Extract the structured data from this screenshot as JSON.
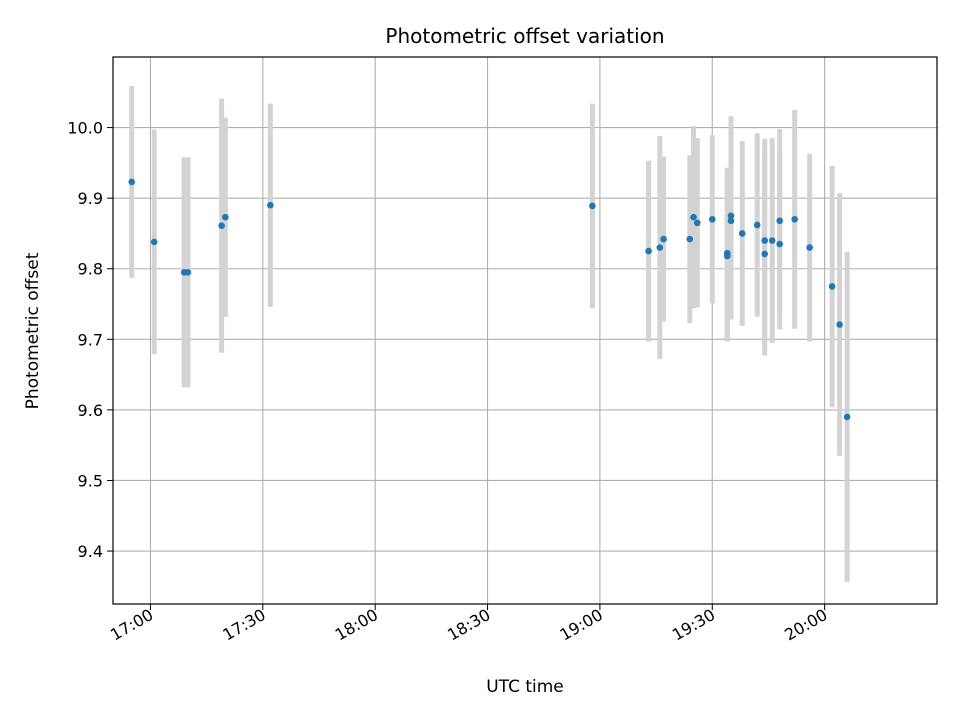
{
  "chart_data": {
    "type": "scatter",
    "title": "Photometric offset variation",
    "xlabel": "UTC time",
    "ylabel": "Photometric offset",
    "xlim": [
      "16:50",
      "20:30"
    ],
    "ylim": [
      9.325,
      10.1
    ],
    "x_ticks": [
      "17:00",
      "17:30",
      "18:00",
      "18:30",
      "19:00",
      "19:30",
      "20:00"
    ],
    "y_ticks": [
      9.4,
      9.5,
      9.6,
      9.7,
      9.8,
      9.9,
      10.0
    ],
    "y_tick_labels": [
      "9.4",
      "9.5",
      "9.6",
      "9.7",
      "9.8",
      "9.9",
      "10.0"
    ],
    "grid": true,
    "marker_color": "#1f77b4",
    "errorbar_color": "#d3d3d3",
    "series": [
      {
        "x": [
          "16:55",
          "17:01",
          "17:09",
          "17:10",
          "17:19",
          "17:20",
          "17:32",
          "18:58",
          "19:13",
          "19:16",
          "19:17",
          "19:24",
          "19:25",
          "19:26",
          "19:30",
          "19:34",
          "19:34",
          "19:35",
          "19:35",
          "19:38",
          "19:42",
          "19:44",
          "19:44",
          "19:46",
          "19:48",
          "19:48",
          "19:52",
          "19:56",
          "20:02",
          "20:04",
          "20:06"
        ],
        "y": [
          9.923,
          9.838,
          9.795,
          9.795,
          9.861,
          9.873,
          9.89,
          9.889,
          9.825,
          9.83,
          9.842,
          9.842,
          9.873,
          9.865,
          9.87,
          9.822,
          9.818,
          9.875,
          9.868,
          9.85,
          9.862,
          9.84,
          9.821,
          9.84,
          9.835,
          9.868,
          9.87,
          9.83,
          9.775,
          9.721,
          9.59
        ],
        "yerr": [
          0.136,
          0.159,
          0.163,
          0.163,
          0.18,
          0.141,
          0.144,
          0.145,
          0.128,
          0.158,
          0.117,
          0.119,
          0.129,
          0.12,
          0.119,
          0.121,
          0.121,
          0.141,
          0.14,
          0.131,
          0.13,
          0.144,
          0.144,
          0.145,
          0.121,
          0.13,
          0.155,
          0.133,
          0.171,
          0.186,
          0.234
        ]
      }
    ]
  }
}
